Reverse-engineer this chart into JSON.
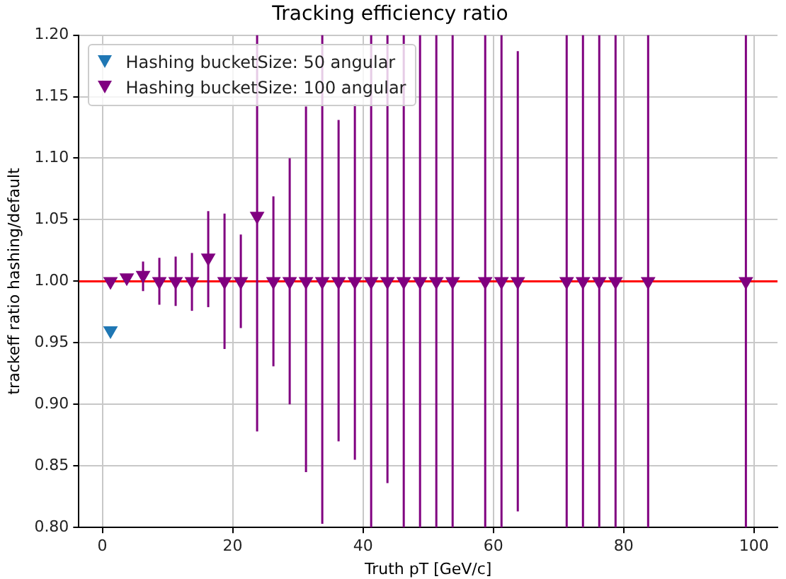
{
  "chart_data": {
    "type": "scatter",
    "title": "Tracking efficiency ratio",
    "xlabel": "Truth pT [GeV/c]",
    "ylabel": "trackeff ratio hashing/default",
    "xlim": [
      -3.6,
      103.6
    ],
    "xticks": [
      0,
      20,
      40,
      60,
      80,
      100
    ],
    "ylim": [
      0.8,
      1.2
    ],
    "yticks": [
      {
        "value": 0.8,
        "label": "0.80"
      },
      {
        "value": 0.85,
        "label": "0.85"
      },
      {
        "value": 0.9,
        "label": "0.90"
      },
      {
        "value": 0.95,
        "label": "0.95"
      },
      {
        "value": 1.0,
        "label": "1.00"
      },
      {
        "value": 1.05,
        "label": "1.05"
      },
      {
        "value": 1.1,
        "label": "1.10"
      },
      {
        "value": 1.15,
        "label": "1.15"
      },
      {
        "value": 1.2,
        "label": "1.20"
      }
    ],
    "grid": true,
    "legend": "top left",
    "marker": "triangle",
    "ref_lines": [
      {
        "axis": "y",
        "value": 1.0,
        "color": "#ff0000"
      }
    ],
    "series": [
      {
        "name": "Hashing bucketSize: 50 angular",
        "color": "#1f77b4",
        "x": [
          1.25
        ],
        "values": [
          0.96
        ],
        "errors": [
          null
        ]
      },
      {
        "name": "Hashing bucketSize: 100 angular",
        "color": "#800080",
        "x": [
          1.25,
          3.75,
          6.25,
          8.75,
          11.25,
          13.75,
          16.25,
          18.75,
          21.25,
          23.75,
          26.25,
          28.75,
          31.25,
          33.75,
          36.25,
          38.75,
          41.25,
          43.75,
          46.25,
          48.75,
          51.25,
          53.75,
          58.75,
          61.25,
          63.75,
          71.25,
          73.75,
          76.25,
          78.75,
          83.75,
          98.75
        ],
        "values": [
          1.0,
          1.003,
          1.005,
          1.0,
          1.0,
          1.0,
          1.019,
          1.0,
          1.0,
          1.053,
          1.0,
          1.0,
          1.0,
          1.0,
          1.0,
          1.0,
          1.0,
          1.0,
          1.0,
          1.0,
          1.0,
          1.0,
          1.0,
          1.0,
          1.0,
          1.0,
          1.0,
          1.0,
          1.0,
          1.0,
          1.0
        ],
        "errors": [
          null,
          null,
          [
            0.992,
            1.016
          ],
          [
            0.981,
            1.019
          ],
          [
            0.98,
            1.02
          ],
          [
            0.976,
            1.023
          ],
          [
            0.979,
            1.057
          ],
          [
            0.945,
            1.055
          ],
          [
            0.962,
            1.038
          ],
          [
            0.878,
            1.2
          ],
          [
            0.931,
            1.069
          ],
          [
            0.9,
            1.1
          ],
          [
            0.845,
            1.142
          ],
          [
            0.803,
            1.2
          ],
          [
            0.87,
            1.131
          ],
          [
            0.855,
            1.144
          ],
          [
            0.8,
            1.2
          ],
          [
            0.836,
            1.2
          ],
          [
            0.8,
            1.2
          ],
          [
            0.8,
            1.2
          ],
          [
            0.8,
            1.2
          ],
          [
            0.8,
            1.2
          ],
          [
            0.8,
            1.2
          ],
          [
            0.8,
            1.2
          ],
          [
            0.813,
            1.187
          ],
          [
            0.8,
            1.2
          ],
          [
            0.8,
            1.2
          ],
          [
            0.8,
            1.2
          ],
          [
            0.8,
            1.2
          ],
          [
            0.8,
            1.2
          ],
          [
            0.8,
            1.2
          ]
        ]
      }
    ]
  }
}
